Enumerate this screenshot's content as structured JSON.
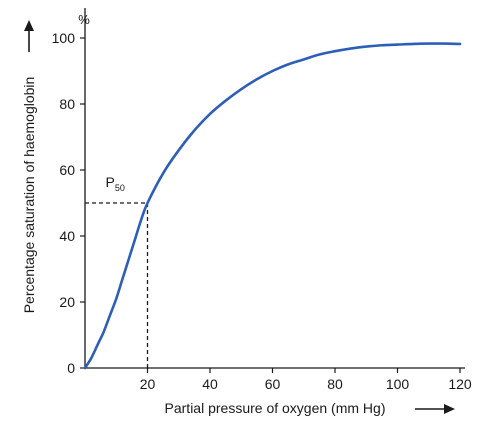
{
  "chart_data": {
    "type": "line",
    "title": "",
    "xlabel": "Partial pressure of oxygen (mm Hg)",
    "ylabel": "Percentage saturation of haemoglobin",
    "y_unit": "%",
    "xlim": [
      0,
      120
    ],
    "ylim": [
      0,
      100
    ],
    "x_ticks": [
      "20",
      "40",
      "60",
      "80",
      "100",
      "120"
    ],
    "y_ticks": [
      "0",
      "20",
      "40",
      "60",
      "80",
      "100"
    ],
    "grid": false,
    "series": [
      {
        "color": "#2d5fb8",
        "x": [
          0,
          2,
          4,
          6,
          8,
          10,
          12,
          14,
          16,
          18,
          20,
          25,
          30,
          35,
          40,
          45,
          50,
          55,
          60,
          65,
          70,
          75,
          80,
          85,
          90,
          95,
          100,
          105,
          110,
          115,
          120
        ],
        "y": [
          0,
          3,
          7,
          11,
          16,
          21,
          27,
          33,
          39,
          45,
          50,
          59,
          66,
          72,
          77,
          81,
          84.5,
          87.5,
          90,
          92,
          93.5,
          95,
          96,
          96.8,
          97.4,
          97.8,
          98,
          98.2,
          98.3,
          98.3,
          98.2
        ]
      }
    ],
    "annotations": [
      {
        "label_main": "P",
        "label_sub": "50",
        "x": 20,
        "y": 50,
        "color": "#1a1a1a"
      }
    ]
  }
}
